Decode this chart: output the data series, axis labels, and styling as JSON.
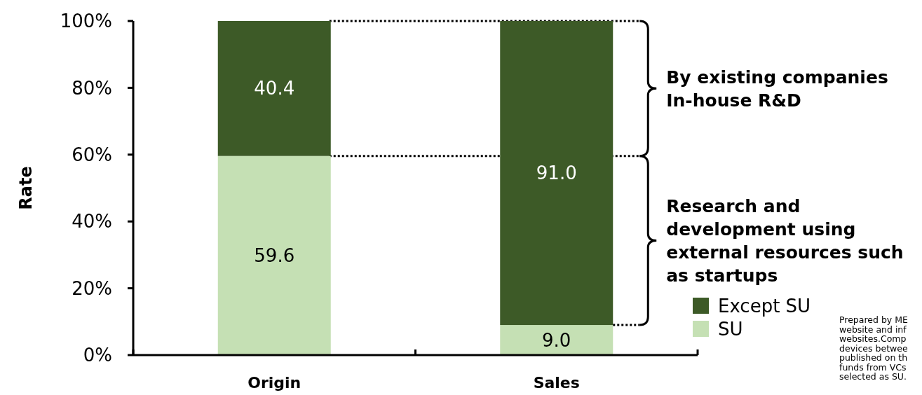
{
  "chart_data": {
    "type": "bar",
    "stacked": true,
    "ylabel": "Rate",
    "categories": [
      "Origin",
      "Sales"
    ],
    "series": [
      {
        "name": "SU",
        "color": "#c5e0b4",
        "values": [
          59.6,
          9.0
        ],
        "value_labels": [
          "59.6",
          "9.0"
        ]
      },
      {
        "name": "Except SU",
        "color": "#3d5a27",
        "values": [
          40.4,
          91.0
        ],
        "value_labels": [
          "40.4",
          "91.0"
        ]
      }
    ],
    "ylim": [
      0,
      100
    ],
    "yticks": [
      {
        "value": 0,
        "label": "0%"
      },
      {
        "value": 20,
        "label": "20%"
      },
      {
        "value": 40,
        "label": "40%"
      },
      {
        "value": 60,
        "label": "60%"
      },
      {
        "value": 80,
        "label": "80%"
      },
      {
        "value": 100,
        "label": "100%"
      }
    ],
    "legend": "bottom right",
    "ref_lines": [
      {
        "axis": "y",
        "value": 100,
        "line_style": "dotted",
        "color": "#000000"
      },
      {
        "axis": "y",
        "value": 59.6,
        "line_style": "dotted",
        "color": "#000000"
      }
    ],
    "annotations": [
      "By existing companies\nIn-house R&D",
      "Research and\ndevelopment using\nexternal resources such\nas startups",
      "Prepared by ME\nwebsite and inf\nwebsites.Comp\ndevices betwee\npublished on th\nfunds from VCs\nselected as SU."
    ]
  }
}
